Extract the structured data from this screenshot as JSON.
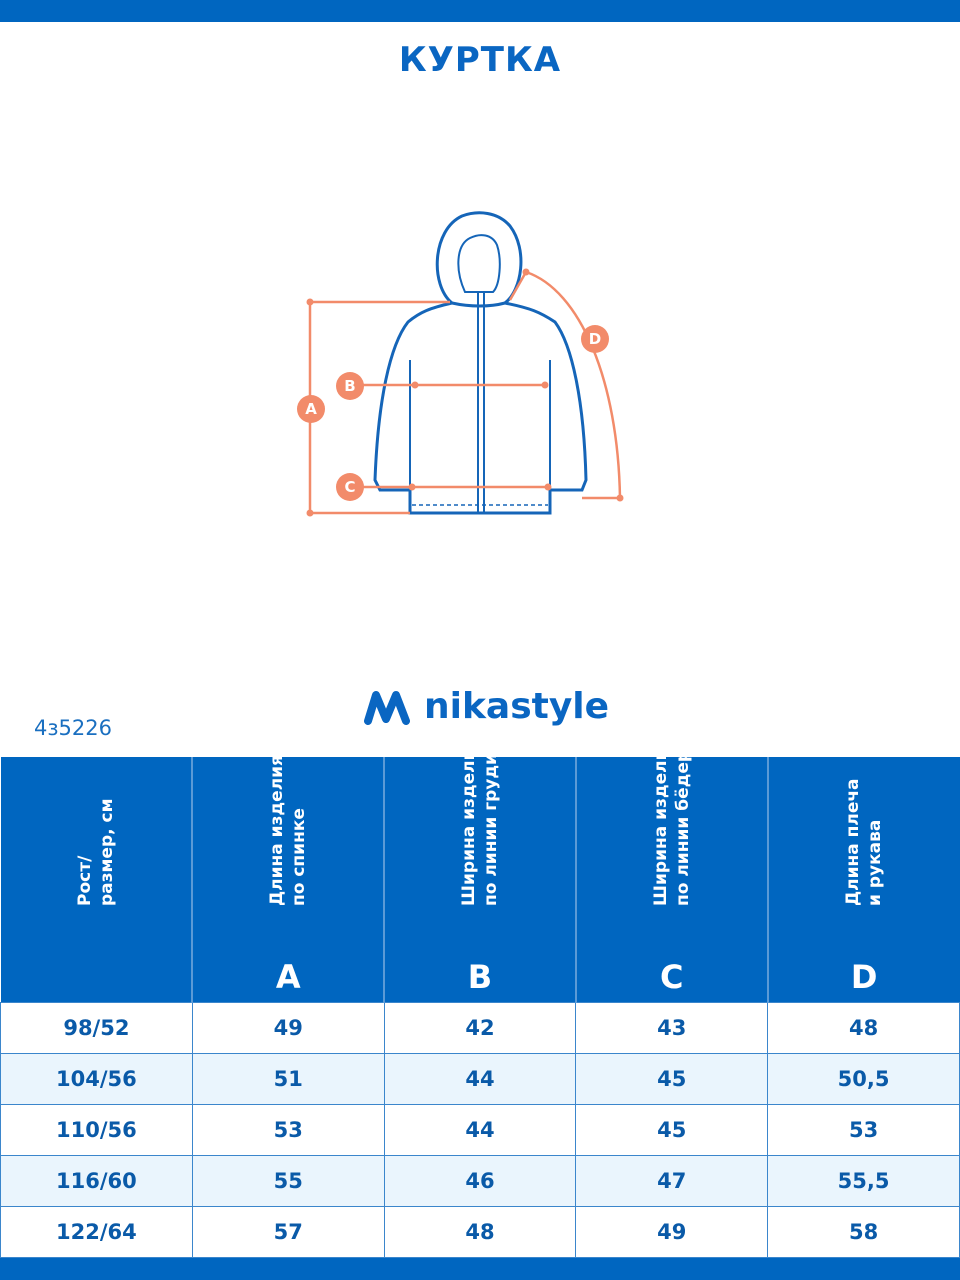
{
  "title": "КУРТКА",
  "brand": "nikastyle",
  "article": "4з5226",
  "colors": {
    "brand_blue": "#0066c0",
    "measure_orange": "#f28b6a"
  },
  "diagram_labels": {
    "a": "A",
    "b": "B",
    "c": "C",
    "d": "D"
  },
  "table": {
    "headers": [
      {
        "text": "Рост/\nразмер, см",
        "letter": ""
      },
      {
        "text": "Длина изделия\nпо спинке",
        "letter": "A"
      },
      {
        "text": "Ширина изделия\nпо линии груди",
        "letter": "B"
      },
      {
        "text": "Ширина изделия\nпо линии бёдер",
        "letter": "C"
      },
      {
        "text": "Длина плеча\nи рукава",
        "letter": "D"
      }
    ],
    "rows": [
      [
        "98/52",
        "49",
        "42",
        "43",
        "48"
      ],
      [
        "104/56",
        "51",
        "44",
        "45",
        "50,5"
      ],
      [
        "110/56",
        "53",
        "44",
        "45",
        "53"
      ],
      [
        "116/60",
        "55",
        "46",
        "47",
        "55,5"
      ],
      [
        "122/64",
        "57",
        "48",
        "49",
        "58"
      ]
    ]
  }
}
